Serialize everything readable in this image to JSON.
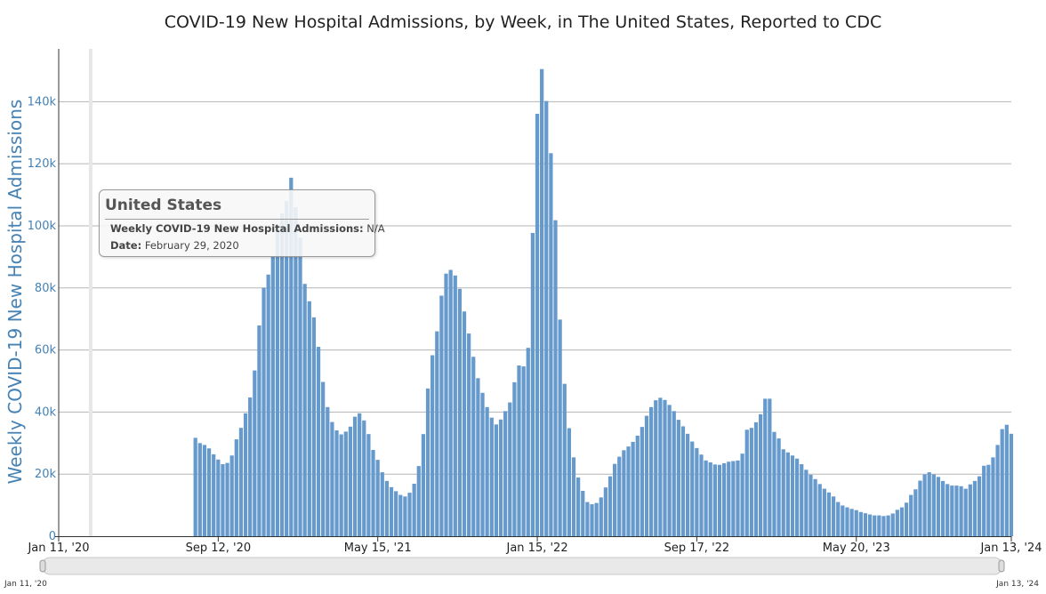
{
  "chart_data": {
    "type": "bar",
    "title": "COVID-19 New Hospital Admissions, by Week, in The United States, Reported to CDC",
    "ylabel": "Weekly COVID-19 New Hospital Admissions",
    "xlabel": "",
    "ylim": [
      0,
      157000
    ],
    "y_ticks": [
      0,
      20000,
      40000,
      60000,
      80000,
      100000,
      120000,
      140000
    ],
    "y_tick_labels": [
      "0",
      "20k",
      "40k",
      "60k",
      "80k",
      "100k",
      "120k",
      "140k"
    ],
    "x_range": [
      "2020-01-11",
      "2024-01-13"
    ],
    "x_ticks": [
      "2020-01-11",
      "2020-09-12",
      "2021-05-15",
      "2022-01-15",
      "2022-09-17",
      "2023-05-20",
      "2024-01-13"
    ],
    "x_tick_labels": [
      "Jan 11, '20",
      "Sep 12, '20",
      "May 15, '21",
      "Jan 15, '22",
      "Sep 17, '22",
      "May 20, '23",
      "Jan 13, '24"
    ],
    "grid": true,
    "bar_color": "#6699cc",
    "series": [
      {
        "start_week": "2020-08-08",
        "week_step_days": 7,
        "values": [
          31700,
          30000,
          29400,
          28300,
          26400,
          24700,
          23200,
          23600,
          26000,
          31200,
          34900,
          39600,
          44700,
          53400,
          67900,
          80000,
          84300,
          90000,
          100000,
          104000,
          108000,
          115500,
          106000,
          96200,
          81300,
          75700,
          70500,
          61000,
          49700,
          41600,
          36800,
          34100,
          32800,
          33700,
          35300,
          38500,
          39600,
          37300,
          32900,
          27800,
          24600,
          20600,
          17800,
          15800,
          14500,
          13300,
          12800,
          14000,
          16900,
          22600,
          32900,
          47600,
          58300,
          66000,
          77500,
          84600,
          85800,
          84000,
          79700,
          72400,
          65300,
          57800,
          50900,
          46200,
          41600,
          38200,
          36000,
          37600,
          40300,
          43100,
          49600,
          55000,
          54700,
          60700,
          97700,
          136100,
          150500,
          140200,
          123400,
          101800,
          69800,
          49100,
          34800,
          25400,
          18900,
          14600,
          11000,
          10300,
          10700,
          12500,
          15700,
          19300,
          23300,
          25600,
          27700,
          28900,
          30400,
          32400,
          35200,
          38800,
          41600,
          43800,
          44600,
          43900,
          42300,
          40300,
          37500,
          35400,
          33000,
          30500,
          28400,
          26300,
          24400,
          23800,
          23100,
          23000,
          23500,
          24000,
          24200,
          24400,
          26600,
          34300,
          34900,
          36700,
          39300,
          44300,
          44300,
          33600,
          31500,
          28000,
          27000,
          26000,
          25000,
          23200,
          21400,
          19800,
          18400,
          16800,
          15300,
          14100,
          12800,
          11000,
          9900,
          9300,
          8800,
          8400,
          7800,
          7400,
          7000,
          6700,
          6700,
          6500,
          6700,
          7300,
          8500,
          9300,
          10800,
          13300,
          15100,
          17900,
          19900,
          20600,
          19900,
          19100,
          17800,
          16800,
          16300,
          16300,
          16100,
          15300,
          16700,
          17800,
          19300,
          22700,
          23000,
          25400,
          29400,
          34500,
          35900,
          33000
        ]
      }
    ],
    "tooltip": {
      "title": "United States",
      "metric_label": "Weekly COVID-19 New Hospital Admissions:",
      "metric_value": "N/A",
      "date_label": "Date:",
      "date_value": "February 29, 2020"
    },
    "hover_marker_date": "2020-02-29",
    "navigator": {
      "start_label": "Jan 11, '20",
      "end_label": "Jan 13, '24"
    }
  }
}
